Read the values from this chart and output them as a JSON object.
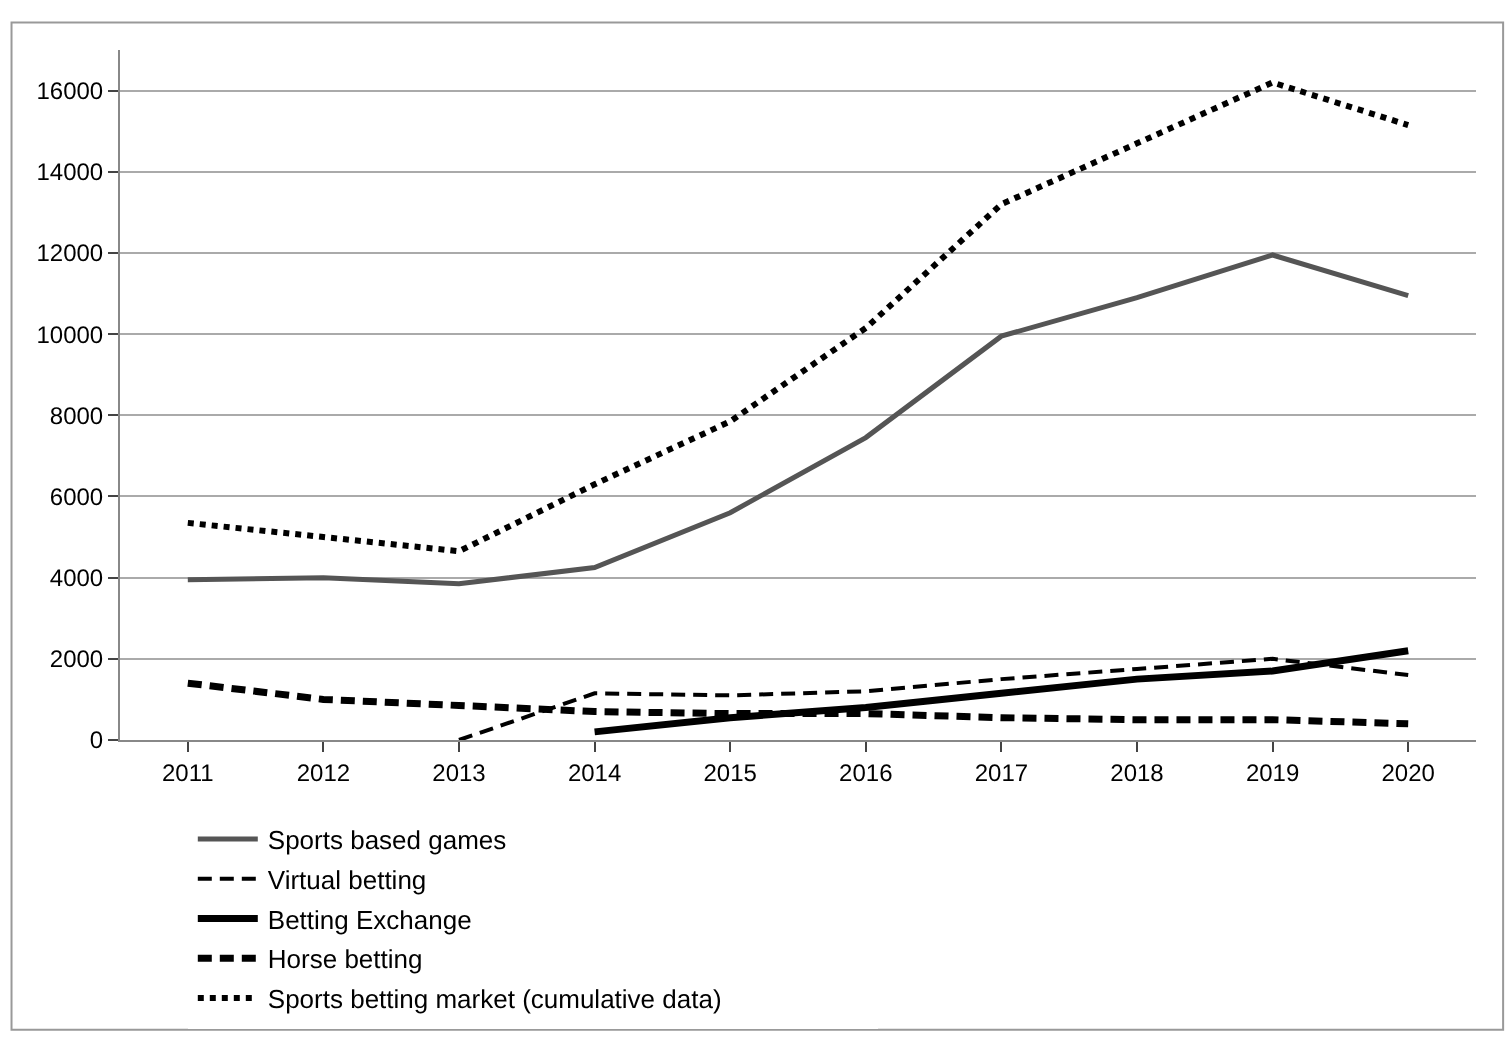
{
  "chart_data": {
    "type": "line",
    "categories": [
      "2011",
      "2012",
      "2013",
      "2014",
      "2015",
      "2016",
      "2017",
      "2018",
      "2019",
      "2020"
    ],
    "ylim": [
      0,
      17000
    ],
    "yticks": [
      0,
      2000,
      4000,
      6000,
      8000,
      10000,
      12000,
      14000,
      16000
    ],
    "grid": "y",
    "legend": "bottom",
    "marker": "none",
    "series": [
      {
        "name": "Sports based games",
        "color": "#555555",
        "line_style": "solid",
        "values": [
          3950,
          4000,
          3850,
          4250,
          5600,
          7450,
          9950,
          10900,
          11950,
          10950
        ]
      },
      {
        "name": "Virtual betting",
        "color": "#000000",
        "line_style": "dashed",
        "values": [
          null,
          null,
          0,
          1150,
          1100,
          1200,
          1500,
          1750,
          2000,
          1600
        ]
      },
      {
        "name": "Betting Exchange",
        "color": "#000000",
        "line_style": "solid",
        "values": [
          null,
          null,
          null,
          200,
          550,
          800,
          1150,
          1500,
          1700,
          2200
        ]
      },
      {
        "name": "Horse betting",
        "color": "#000000",
        "line_style": "dashed",
        "values": [
          1400,
          1000,
          850,
          700,
          650,
          650,
          550,
          500,
          500,
          400
        ]
      },
      {
        "name": "Sports betting market (cumulative data)",
        "color": "#000000",
        "line_style": "dotted",
        "values": [
          5350,
          5000,
          4650,
          6300,
          7850,
          10150,
          13200,
          14700,
          16200,
          15150
        ]
      }
    ]
  }
}
